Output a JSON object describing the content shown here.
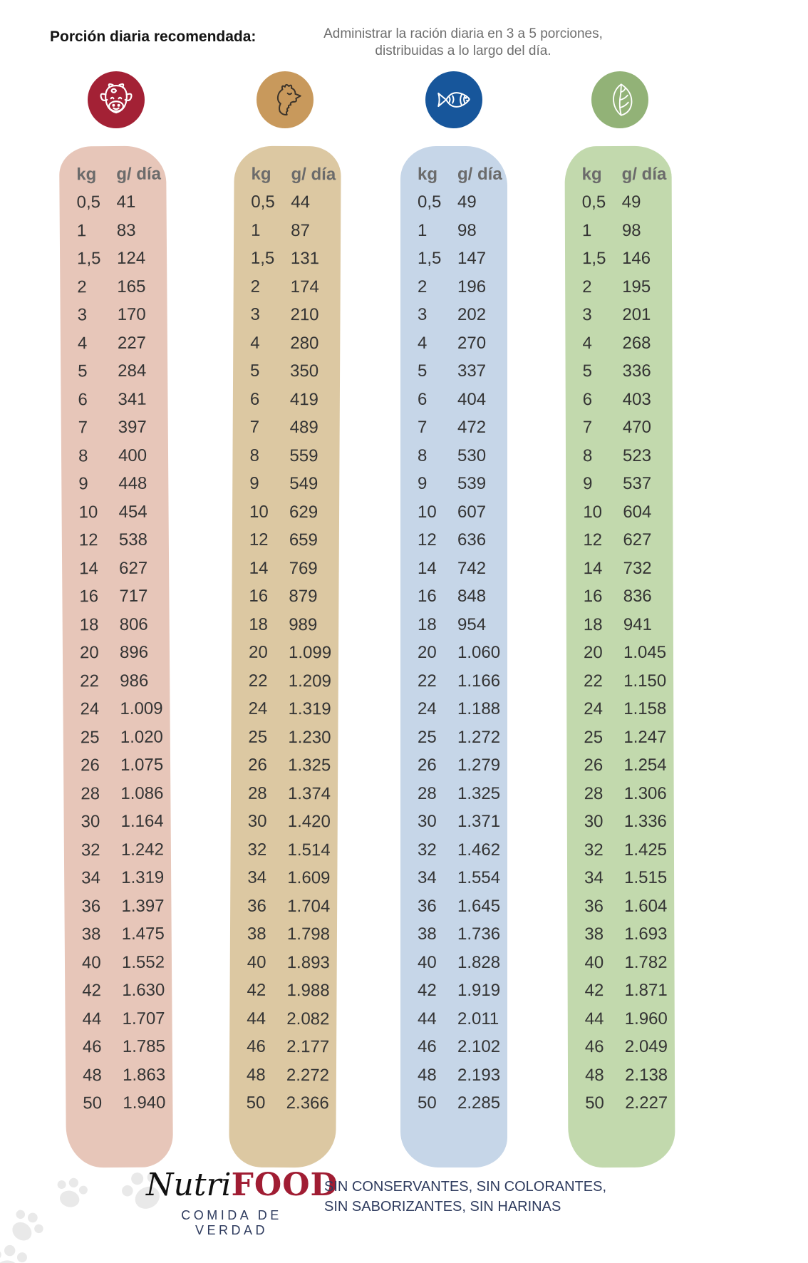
{
  "header": {
    "title": "Porción diaria recomendada:",
    "subtitle_line1": "Administrar la ración diaria en 3 a 5 porciones,",
    "subtitle_line2": "distribuidas a lo largo del día."
  },
  "table_header": {
    "kg": "kg",
    "g_dia": "g/ día"
  },
  "columns": [
    {
      "icon": "cow-icon",
      "circle_color": "#a32135",
      "panel_color": "#e7c6b9"
    },
    {
      "icon": "chicken-icon",
      "circle_color": "#c8995c",
      "panel_color": "#dcc8a2"
    },
    {
      "icon": "fish-icon",
      "circle_color": "#17569b",
      "panel_color": "#c6d6e8"
    },
    {
      "icon": "leaf-icon",
      "circle_color": "#92b277",
      "panel_color": "#c2d9ad"
    }
  ],
  "chart_data": {
    "type": "table",
    "title": "Porción diaria recomendada",
    "note": "Administrar la ración diaria en 3 a 5 porciones, distribuidas a lo largo del día.",
    "columns_header": [
      "kg",
      "g/ día"
    ],
    "categories_kg": [
      "0,5",
      "1",
      "1,5",
      "2",
      "3",
      "4",
      "5",
      "6",
      "7",
      "8",
      "9",
      "10",
      "12",
      "14",
      "16",
      "18",
      "20",
      "22",
      "24",
      "25",
      "26",
      "28",
      "30",
      "32",
      "34",
      "36",
      "38",
      "40",
      "42",
      "44",
      "46",
      "48",
      "50"
    ],
    "series": [
      {
        "name": "cow-icon",
        "g_dia": [
          "41",
          "83",
          "124",
          "165",
          "170",
          "227",
          "284",
          "341",
          "397",
          "400",
          "448",
          "454",
          "538",
          "627",
          "717",
          "806",
          "896",
          "986",
          "1.009",
          "1.020",
          "1.075",
          "1.086",
          "1.164",
          "1.242",
          "1.319",
          "1.397",
          "1.475",
          "1.552",
          "1.630",
          "1.707",
          "1.785",
          "1.863",
          "1.940"
        ]
      },
      {
        "name": "chicken-icon",
        "g_dia": [
          "44",
          "87",
          "131",
          "174",
          "210",
          "280",
          "350",
          "419",
          "489",
          "559",
          "549",
          "629",
          "659",
          "769",
          "879",
          "989",
          "1.099",
          "1.209",
          "1.319",
          "1.230",
          "1.325",
          "1.374",
          "1.420",
          "1.514",
          "1.609",
          "1.704",
          "1.798",
          "1.893",
          "1.988",
          "2.082",
          "2.177",
          "2.272",
          "2.366"
        ]
      },
      {
        "name": "fish-icon",
        "g_dia": [
          "49",
          "98",
          "147",
          "196",
          "202",
          "270",
          "337",
          "404",
          "472",
          "530",
          "539",
          "607",
          "636",
          "742",
          "848",
          "954",
          "1.060",
          "1.166",
          "1.188",
          "1.272",
          "1.279",
          "1.325",
          "1.371",
          "1.462",
          "1.554",
          "1.645",
          "1.736",
          "1.828",
          "1.919",
          "2.011",
          "2.102",
          "2.193",
          "2.285"
        ]
      },
      {
        "name": "leaf-icon",
        "g_dia": [
          "49",
          "98",
          "146",
          "195",
          "201",
          "268",
          "336",
          "403",
          "470",
          "523",
          "537",
          "604",
          "627",
          "732",
          "836",
          "941",
          "1.045",
          "1.150",
          "1.158",
          "1.247",
          "1.254",
          "1.306",
          "1.336",
          "1.425",
          "1.515",
          "1.604",
          "1.693",
          "1.782",
          "1.871",
          "1.960",
          "2.049",
          "2.138",
          "2.227"
        ]
      }
    ]
  },
  "footer": {
    "logo_nutri": "Nutri",
    "logo_food": "FOOD",
    "logo_tagline": "COMIDA DE VERDAD",
    "claims_line1": "SIN CONSERVANTES, SIN COLORANTES,",
    "claims_line2": "SIN SABORIZANTES, SIN HARINAS",
    "accent_navy": "#2e3b5e",
    "accent_red": "#a01d33"
  },
  "decor": {
    "paw_icon": "paw-print-icon",
    "paw_color": "#e9e9e9"
  }
}
